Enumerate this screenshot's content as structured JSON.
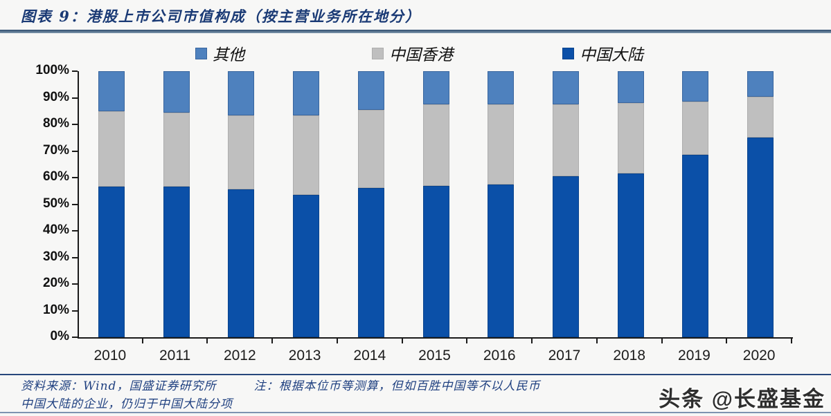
{
  "header": {
    "title": "图表 9：港股上市公司市值构成（按主营业务所在地分）"
  },
  "chart_data": {
    "type": "bar",
    "stacked": true,
    "title": "港股上市公司市值构成（按主营业务所在地分）",
    "categories": [
      "2010",
      "2011",
      "2012",
      "2013",
      "2014",
      "2015",
      "2016",
      "2017",
      "2018",
      "2019",
      "2020"
    ],
    "series": [
      {
        "name": "中国大陆",
        "color": "#0b50a8",
        "border": "#09438c",
        "values": [
          56.5,
          56.5,
          55.5,
          53.5,
          56.0,
          57.0,
          57.5,
          60.5,
          61.5,
          68.5,
          75.0
        ]
      },
      {
        "name": "中国香港",
        "color": "#bfbfbf",
        "border": "#adadad",
        "values": [
          28.5,
          28.0,
          28.0,
          30.0,
          29.5,
          30.5,
          30.0,
          27.0,
          26.5,
          20.0,
          15.5
        ]
      },
      {
        "name": "其他",
        "color": "#4e81be",
        "border": "#38659e",
        "values": [
          15.0,
          15.5,
          16.5,
          16.5,
          14.5,
          12.5,
          12.5,
          12.5,
          12.0,
          11.5,
          9.5
        ]
      }
    ],
    "legend_order": [
      "其他",
      "中国香港",
      "中国大陆"
    ],
    "y_ticks": [
      "0%",
      "10%",
      "20%",
      "30%",
      "40%",
      "50%",
      "60%",
      "70%",
      "80%",
      "90%",
      "100%"
    ],
    "ylim": [
      0,
      100
    ],
    "unit": "%",
    "grid": false,
    "legend_position": "top"
  },
  "footer": {
    "line1": "资料来源：Wind，国盛证券研究所　　　注：根据本位币等测算，但如百胜中国等不以人民币",
    "line2": "中国大陆的企业，仍归于中国大陆分项"
  },
  "watermark": {
    "text": "头条 @长盛基金"
  }
}
